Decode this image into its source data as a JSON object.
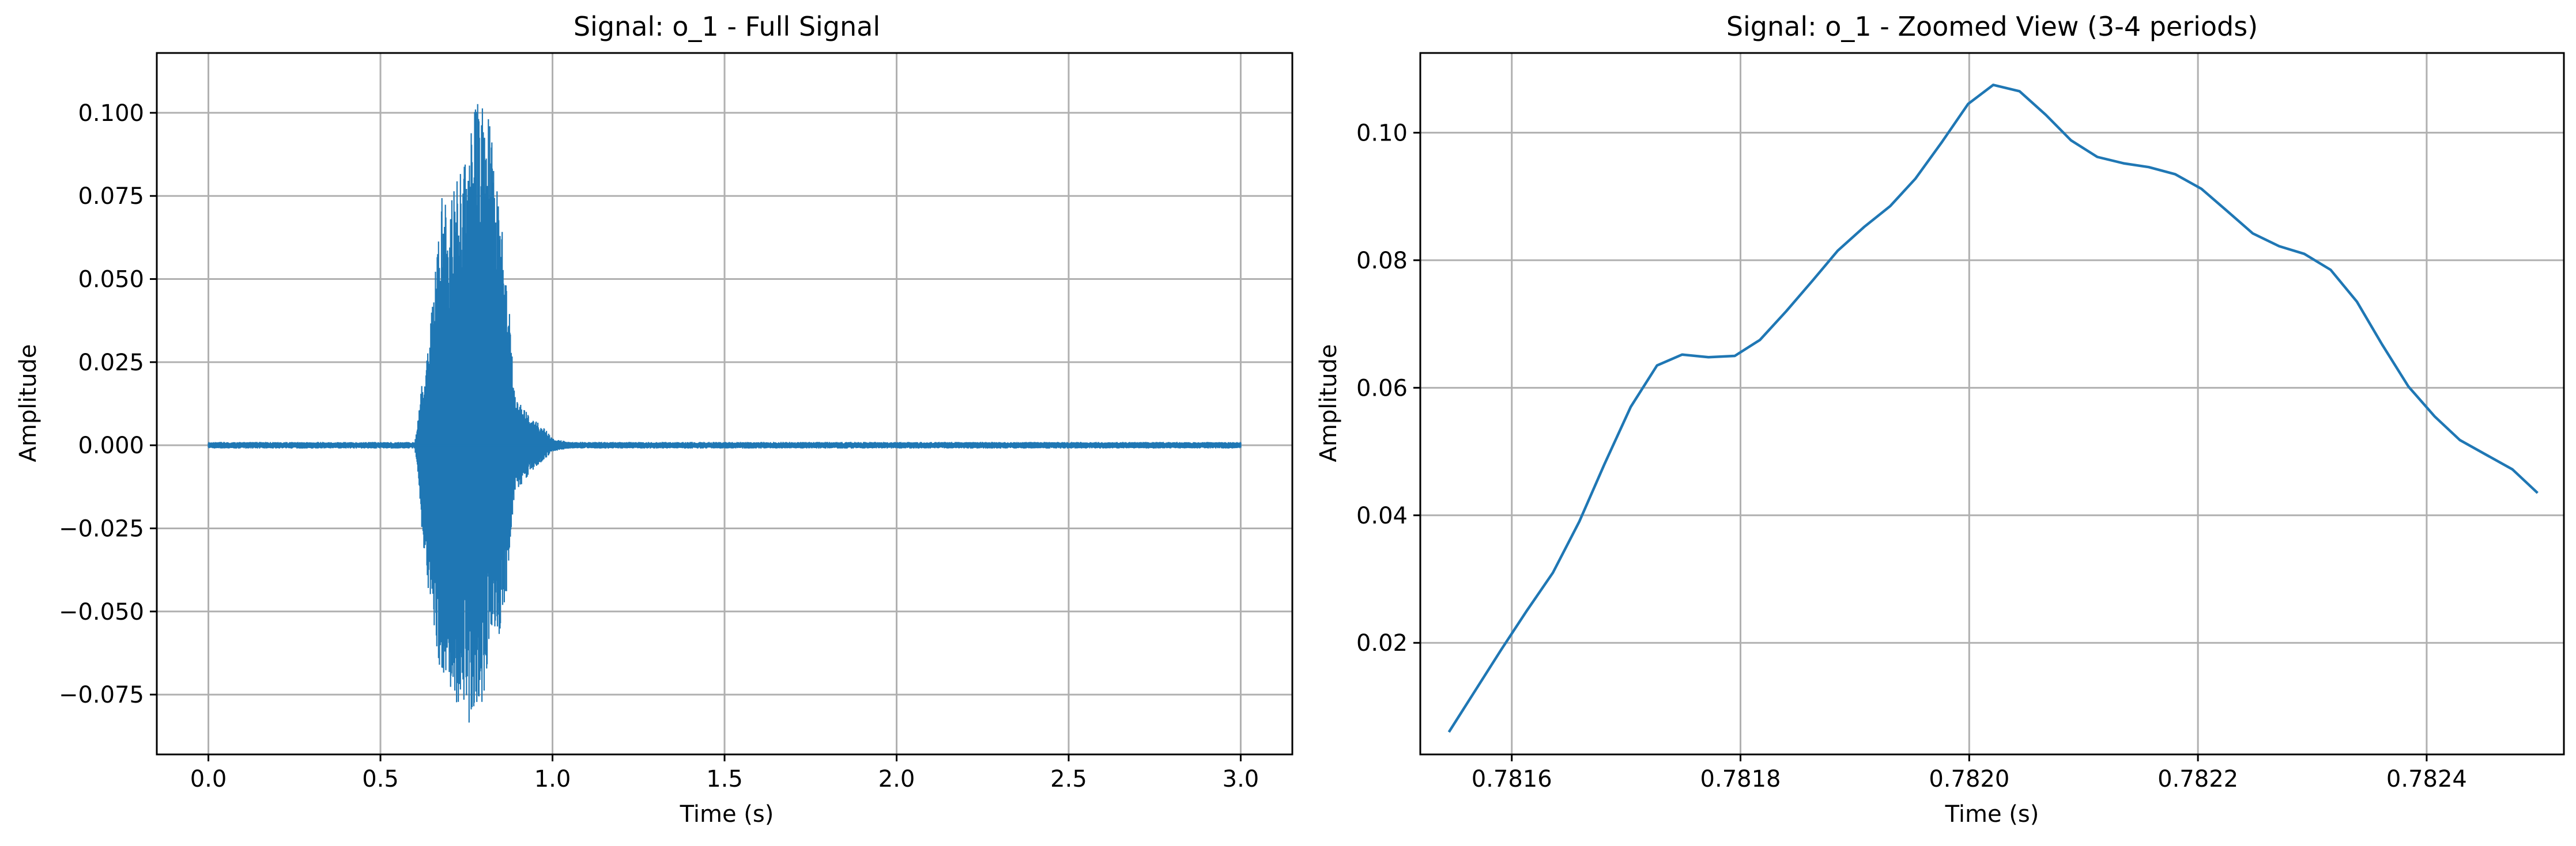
{
  "figure_colors": {
    "line": "#1f77b4",
    "grid": "#b0b0b0",
    "background": "#ffffff"
  },
  "chart_data": [
    {
      "type": "line",
      "title": "Signal: o_1 - Full Signal",
      "xlabel": "Time (s)",
      "ylabel": "Amplitude",
      "xlim": [
        -0.15,
        3.15
      ],
      "ylim": [
        -0.093,
        0.118
      ],
      "xticks": [
        0.0,
        0.5,
        1.0,
        1.5,
        2.0,
        2.5,
        3.0
      ],
      "xtick_labels": [
        "0.0",
        "0.5",
        "1.0",
        "1.5",
        "2.0",
        "2.5",
        "3.0"
      ],
      "yticks": [
        -0.075,
        -0.05,
        -0.025,
        0.0,
        0.025,
        0.05,
        0.075,
        0.1
      ],
      "ytick_labels": [
        "−0.075",
        "−0.050",
        "−0.025",
        "0.000",
        "0.025",
        "0.050",
        "0.075",
        "0.100"
      ],
      "grid": true,
      "series": [
        {
          "color": "#1f77b4",
          "envelope": {
            "x": [
              0.0,
              0.6,
              0.62,
              0.63,
              0.65,
              0.67,
              0.68,
              0.7,
              0.72,
              0.74,
              0.76,
              0.78,
              0.79,
              0.8,
              0.82,
              0.84,
              0.86,
              0.87,
              0.89,
              0.91,
              0.94,
              0.97,
              1.0,
              1.05,
              1.1,
              3.0
            ],
            "upper": [
              0.001,
              0.001,
              0.018,
              0.02,
              0.043,
              0.063,
              0.076,
              0.068,
              0.084,
              0.085,
              0.096,
              0.104,
              0.107,
              0.104,
              0.098,
              0.077,
              0.064,
              0.05,
              0.015,
              0.012,
              0.008,
              0.006,
              0.002,
              0.001,
              0.001,
              0.001
            ],
            "lower": [
              -0.001,
              -0.001,
              -0.025,
              -0.035,
              -0.058,
              -0.07,
              -0.068,
              -0.072,
              -0.078,
              -0.079,
              -0.085,
              -0.083,
              -0.08,
              -0.075,
              -0.06,
              -0.06,
              -0.053,
              -0.04,
              -0.014,
              -0.012,
              -0.008,
              -0.005,
              -0.002,
              -0.001,
              -0.001,
              -0.001
            ]
          }
        }
      ]
    },
    {
      "type": "line",
      "title": "Signal: o_1 - Zoomed View (3-4 periods)",
      "xlabel": "Time (s)",
      "ylabel": "Amplitude",
      "xlim": [
        0.78152,
        0.78252
      ],
      "ylim": [
        0.0025,
        0.1125
      ],
      "xticks": [
        0.7816,
        0.7818,
        0.782,
        0.7822,
        0.7824
      ],
      "xtick_labels": [
        "0.7816",
        "0.7818",
        "0.7820",
        "0.7822",
        "0.7824"
      ],
      "yticks": [
        0.02,
        0.04,
        0.06,
        0.08,
        0.1
      ],
      "ytick_labels": [
        "0.02",
        "0.04",
        "0.06",
        "0.08",
        "0.10"
      ],
      "grid": true,
      "series": [
        {
          "color": "#1f77b4",
          "x": [
            0.781545,
            0.781568,
            0.781591,
            0.781613,
            0.781636,
            0.781659,
            0.781681,
            0.781704,
            0.781727,
            0.781749,
            0.781772,
            0.781795,
            0.781817,
            0.78184,
            0.781863,
            0.781885,
            0.781908,
            0.781931,
            0.781953,
            0.781976,
            0.781999,
            0.782021,
            0.782044,
            0.782067,
            0.782089,
            0.782112,
            0.782135,
            0.782157,
            0.78218,
            0.782203,
            0.782225,
            0.782248,
            0.782271,
            0.782293,
            0.782316,
            0.782339,
            0.782361,
            0.782384,
            0.782407,
            0.782429,
            0.782452,
            0.782475,
            0.782497
          ],
          "y": [
            0.006,
            0.0125,
            0.019,
            0.025,
            0.031,
            0.039,
            0.048,
            0.057,
            0.0635,
            0.0652,
            0.0648,
            0.065,
            0.0675,
            0.072,
            0.0768,
            0.0815,
            0.0852,
            0.0885,
            0.0928,
            0.0985,
            0.1045,
            0.1075,
            0.1065,
            0.1028,
            0.0988,
            0.0962,
            0.0952,
            0.0946,
            0.0935,
            0.0912,
            0.0878,
            0.0842,
            0.0822,
            0.081,
            0.0785,
            0.0735,
            0.0668,
            0.0602,
            0.0555,
            0.0518,
            0.0495,
            0.0472,
            0.0435
          ]
        }
      ]
    }
  ]
}
